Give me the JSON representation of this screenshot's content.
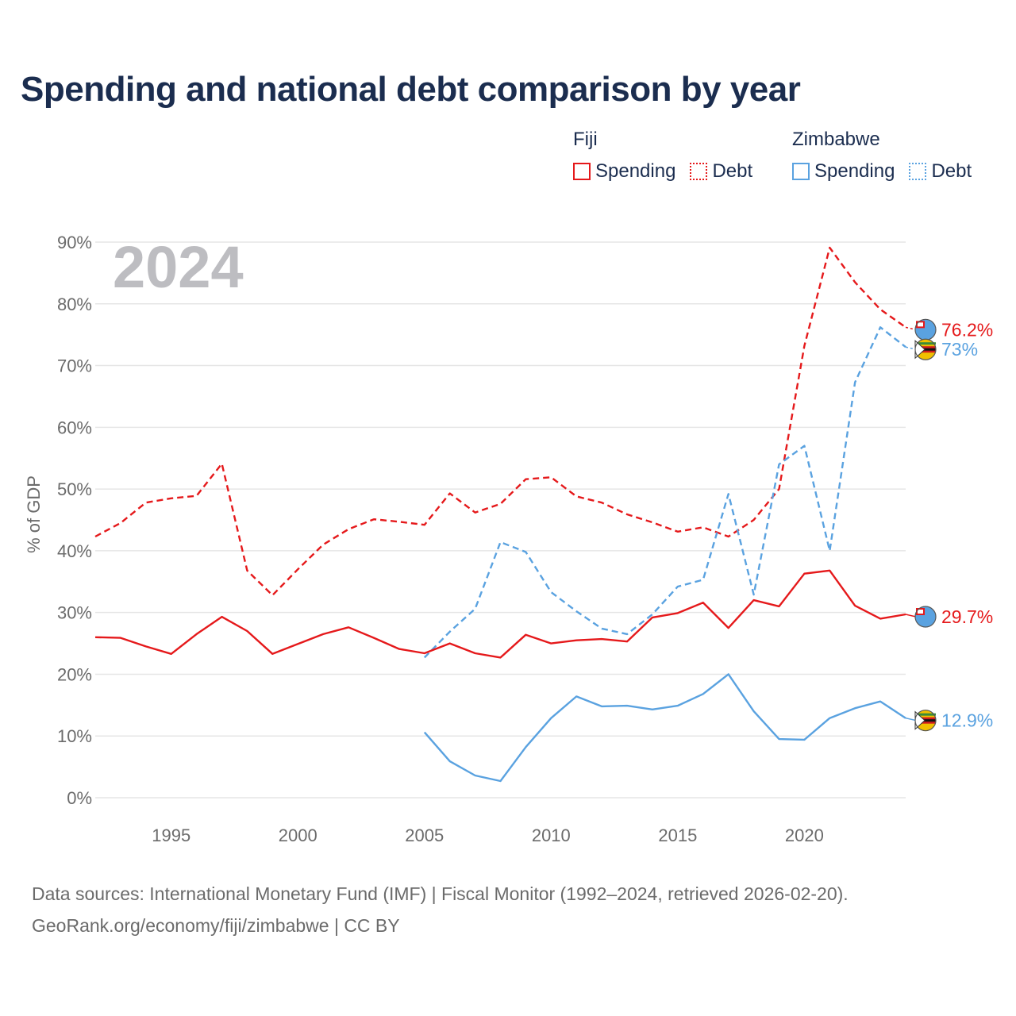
{
  "title": "Spending and national debt comparison by year",
  "legend": {
    "groups": [
      {
        "name": "Fiji",
        "items": [
          {
            "label": "Spending",
            "style": "solid",
            "color": "#e5191b"
          },
          {
            "label": "Debt",
            "style": "dotted",
            "color": "#e5191b"
          }
        ]
      },
      {
        "name": "Zimbabwe",
        "items": [
          {
            "label": "Spending",
            "style": "solid",
            "color": "#5aa2e0"
          },
          {
            "label": "Debt",
            "style": "dotted",
            "color": "#5aa2e0"
          }
        ]
      }
    ]
  },
  "footer": {
    "line1": "Data sources: International Monetary Fund (IMF) | Fiscal Monitor (1992–2024, retrieved 2026-02-20).",
    "line2": "GeoRank.org/economy/fiji/zimbabwe | CC BY"
  },
  "chart_data": {
    "type": "line",
    "title": "Spending and national debt comparison by year",
    "year_label": "2024",
    "ylabel": "% of GDP",
    "xlabel": "",
    "xlim": [
      1992,
      2024
    ],
    "ylim": [
      0,
      90
    ],
    "x_ticks": [
      1995,
      2000,
      2005,
      2010,
      2015,
      2020
    ],
    "y_ticks": [
      0,
      10,
      20,
      30,
      40,
      50,
      60,
      70,
      80,
      90
    ],
    "y_tick_labels": [
      "0%",
      "10%",
      "20%",
      "30%",
      "40%",
      "50%",
      "60%",
      "70%",
      "80%",
      "90%"
    ],
    "series": [
      {
        "name": "Fiji Debt",
        "country": "Fiji",
        "measure": "Debt",
        "dashed": true,
        "color": "#e5191b",
        "end_label": "76.2%",
        "x": [
          1992,
          1993,
          1994,
          1995,
          1996,
          1997,
          1998,
          1999,
          2000,
          2001,
          2002,
          2003,
          2004,
          2005,
          2006,
          2007,
          2008,
          2009,
          2010,
          2011,
          2012,
          2013,
          2014,
          2015,
          2016,
          2017,
          2018,
          2019,
          2020,
          2021,
          2022,
          2023,
          2024
        ],
        "values": [
          42.3,
          44.5,
          47.8,
          48.5,
          48.9,
          54.1,
          36.8,
          32.8,
          37.0,
          41.0,
          43.5,
          45.1,
          44.7,
          44.2,
          49.3,
          46.2,
          47.6,
          51.6,
          51.9,
          48.8,
          47.8,
          45.9,
          44.6,
          43.1,
          43.8,
          42.3,
          45.0,
          50.0,
          73.2,
          89.1,
          83.5,
          79.1,
          76.2
        ]
      },
      {
        "name": "Zimbabwe Debt",
        "country": "Zimbabwe",
        "measure": "Debt",
        "dashed": true,
        "color": "#5aa2e0",
        "end_label": "73%",
        "x": [
          2005,
          2006,
          2007,
          2008,
          2009,
          2010,
          2011,
          2012,
          2013,
          2014,
          2015,
          2016,
          2017,
          2018,
          2019,
          2020,
          2021,
          2022,
          2023,
          2024
        ],
        "values": [
          22.7,
          26.9,
          30.6,
          41.4,
          39.8,
          33.3,
          30.2,
          27.4,
          26.5,
          29.7,
          34.2,
          35.3,
          49.2,
          32.9,
          54.0,
          57.0,
          40.0,
          67.3,
          76.2,
          73.0
        ]
      },
      {
        "name": "Fiji Spending",
        "country": "Fiji",
        "measure": "Spending",
        "dashed": false,
        "color": "#e5191b",
        "end_label": "29.7%",
        "x": [
          1992,
          1993,
          1994,
          1995,
          1996,
          1997,
          1998,
          1999,
          2000,
          2001,
          2002,
          2003,
          2004,
          2005,
          2006,
          2007,
          2008,
          2009,
          2010,
          2011,
          2012,
          2013,
          2014,
          2015,
          2016,
          2017,
          2018,
          2019,
          2020,
          2021,
          2022,
          2023,
          2024
        ],
        "values": [
          26.0,
          25.9,
          24.5,
          23.3,
          26.5,
          29.3,
          27.0,
          23.3,
          24.9,
          26.5,
          27.6,
          25.9,
          24.1,
          23.4,
          25.0,
          23.4,
          22.7,
          26.4,
          25.0,
          25.5,
          25.7,
          25.3,
          29.2,
          29.9,
          31.6,
          27.5,
          32.0,
          31.0,
          36.3,
          36.8,
          31.1,
          29.0,
          29.7
        ]
      },
      {
        "name": "Zimbabwe Spending",
        "country": "Zimbabwe",
        "measure": "Spending",
        "dashed": false,
        "color": "#5aa2e0",
        "end_label": "12.9%",
        "x": [
          2005,
          2006,
          2007,
          2008,
          2009,
          2010,
          2011,
          2012,
          2013,
          2014,
          2015,
          2016,
          2017,
          2018,
          2019,
          2020,
          2021,
          2022,
          2023,
          2024
        ],
        "values": [
          10.6,
          5.9,
          3.6,
          2.7,
          8.2,
          12.9,
          16.4,
          14.8,
          14.9,
          14.3,
          14.9,
          16.8,
          20.0,
          14.0,
          9.5,
          9.4,
          12.9,
          14.5,
          15.6,
          12.9
        ]
      }
    ]
  }
}
